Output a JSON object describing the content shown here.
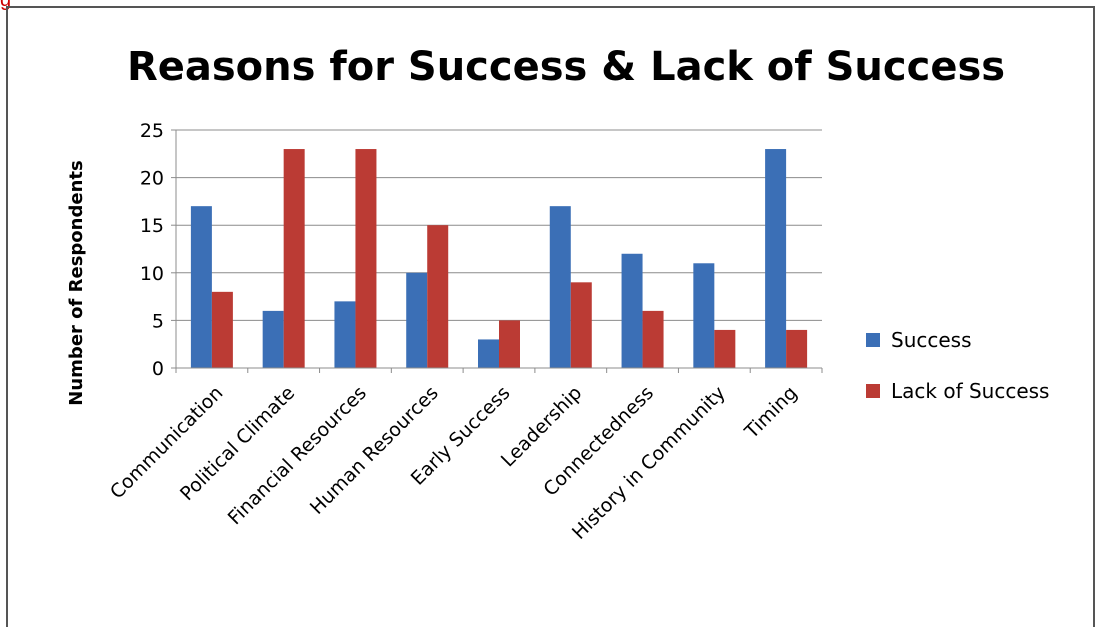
{
  "fragment_text": "g",
  "chart_data": {
    "type": "bar",
    "title": "Reasons for Success & Lack of Success",
    "xlabel": "",
    "ylabel": "Number of Respondents",
    "ylim": [
      0,
      25
    ],
    "yticks": [
      0,
      5,
      10,
      15,
      20,
      25
    ],
    "grid": true,
    "legend_position": "right",
    "categories": [
      "Communication",
      "Political Climate",
      "Financial Resources",
      "Human Resources",
      "Early Success",
      "Leadership",
      "Connectedness",
      "History in Community",
      "Timing"
    ],
    "series": [
      {
        "name": "Success",
        "color": "#3b6fb6",
        "values": [
          17,
          6,
          7,
          10,
          3,
          17,
          12,
          11,
          23
        ]
      },
      {
        "name": "Lack of Success",
        "color": "#bb3b34",
        "values": [
          8,
          23,
          23,
          15,
          5,
          9,
          6,
          4,
          4
        ]
      }
    ]
  }
}
